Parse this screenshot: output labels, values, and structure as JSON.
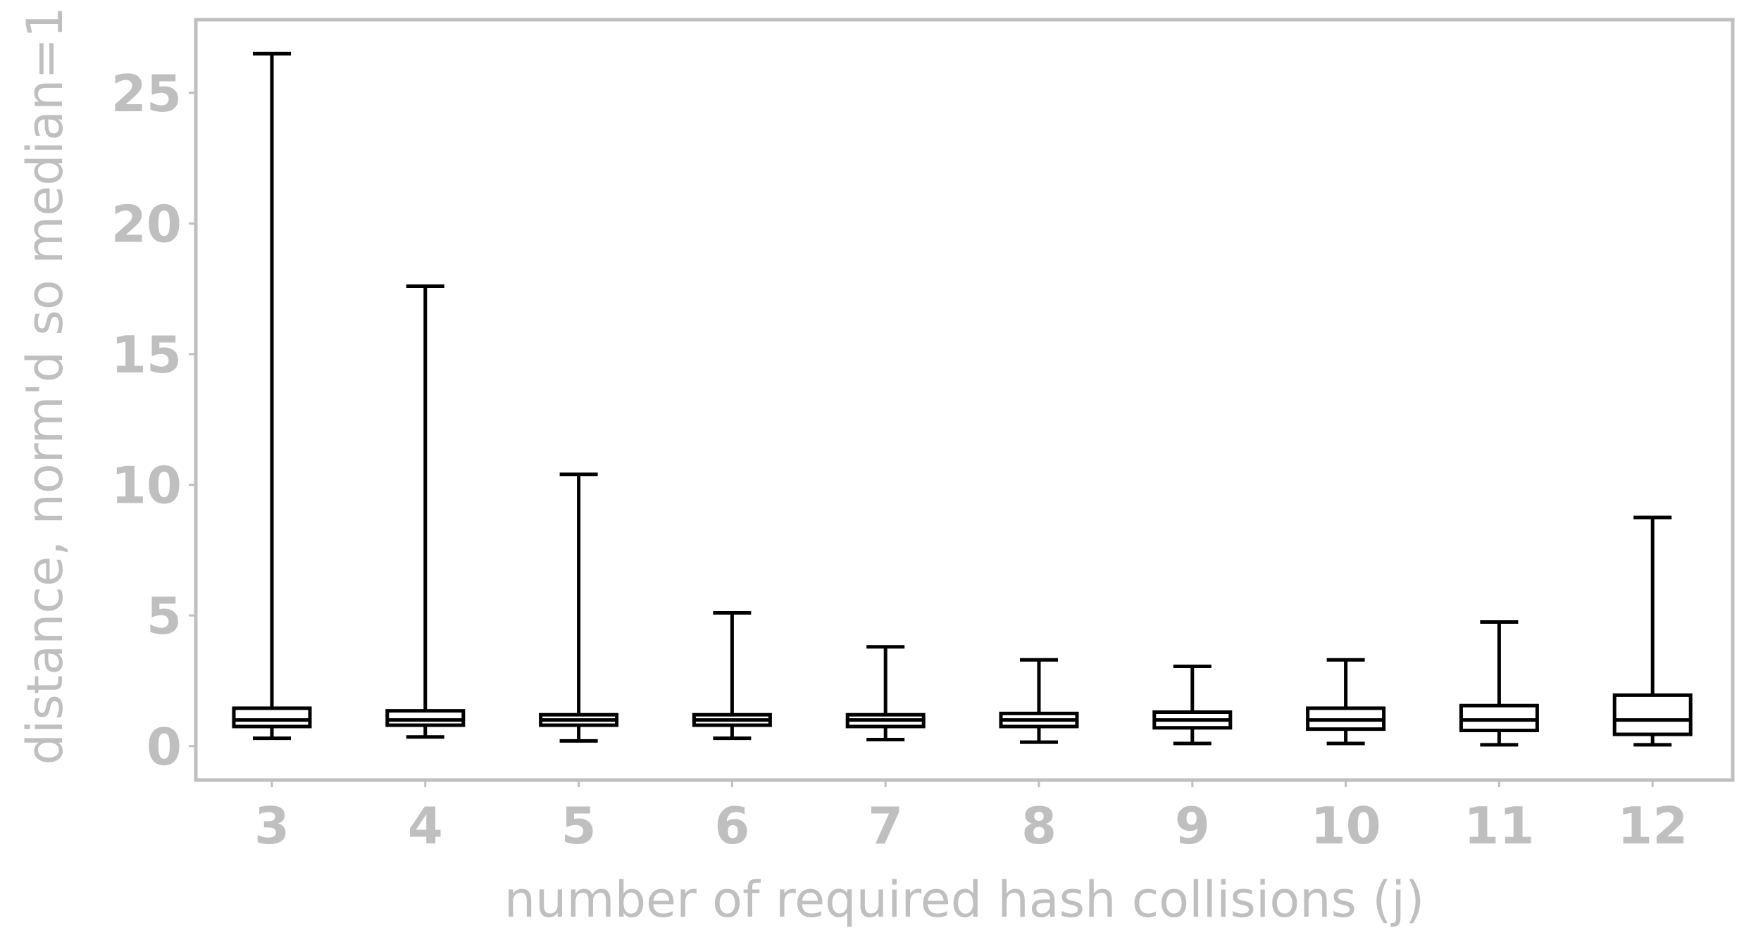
{
  "chart_data": {
    "type": "boxplot",
    "title": "",
    "xlabel": "number of required hash collisions (j)",
    "ylabel": "distance, norm'd so median=1",
    "ylim": [
      -1.3,
      27.8
    ],
    "yticks": [
      0,
      5,
      10,
      15,
      20,
      25
    ],
    "grid": false,
    "categories": [
      "3",
      "4",
      "5",
      "6",
      "7",
      "8",
      "9",
      "10",
      "11",
      "12"
    ],
    "boxes": [
      {
        "whislo": 0.3,
        "q1": 0.75,
        "median": 1.0,
        "q3": 1.45,
        "whishi": 26.5
      },
      {
        "whislo": 0.35,
        "q1": 0.8,
        "median": 1.0,
        "q3": 1.35,
        "whishi": 17.6
      },
      {
        "whislo": 0.2,
        "q1": 0.8,
        "median": 1.0,
        "q3": 1.2,
        "whishi": 10.4
      },
      {
        "whislo": 0.3,
        "q1": 0.8,
        "median": 1.0,
        "q3": 1.2,
        "whishi": 5.1
      },
      {
        "whislo": 0.25,
        "q1": 0.75,
        "median": 1.0,
        "q3": 1.2,
        "whishi": 3.8
      },
      {
        "whislo": 0.15,
        "q1": 0.75,
        "median": 1.0,
        "q3": 1.25,
        "whishi": 3.3
      },
      {
        "whislo": 0.1,
        "q1": 0.7,
        "median": 1.0,
        "q3": 1.3,
        "whishi": 3.05
      },
      {
        "whislo": 0.1,
        "q1": 0.65,
        "median": 1.0,
        "q3": 1.45,
        "whishi": 3.3
      },
      {
        "whislo": 0.05,
        "q1": 0.6,
        "median": 1.0,
        "q3": 1.55,
        "whishi": 4.75
      },
      {
        "whislo": 0.05,
        "q1": 0.45,
        "median": 1.0,
        "q3": 1.95,
        "whishi": 8.75
      }
    ],
    "colors": {
      "frame": "#bfbfbf",
      "text": "#bfbfbf",
      "boxes": "#000000"
    }
  }
}
